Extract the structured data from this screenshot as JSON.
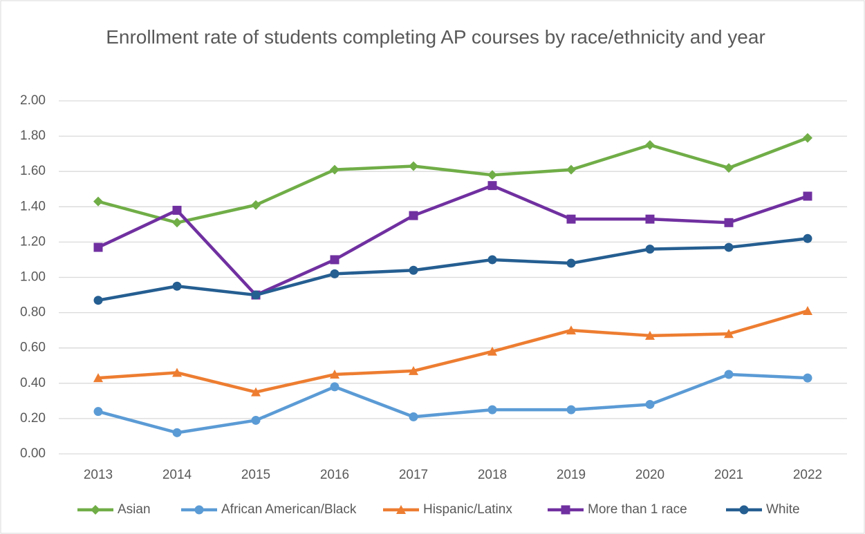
{
  "chart_data": {
    "type": "line",
    "title": "Enrollment rate of students completing AP courses by race/ethnicity and year",
    "categories": [
      "2013",
      "2014",
      "2015",
      "2016",
      "2017",
      "2018",
      "2019",
      "2020",
      "2021",
      "2022"
    ],
    "series": [
      {
        "name": "Asian",
        "color": "#70ad47",
        "marker": "diamond",
        "values": [
          1.43,
          1.31,
          1.41,
          1.61,
          1.63,
          1.58,
          1.61,
          1.75,
          1.62,
          1.79
        ]
      },
      {
        "name": "African American/Black",
        "color": "#5b9bd5",
        "marker": "circle",
        "values": [
          0.24,
          0.12,
          0.19,
          0.38,
          0.21,
          0.25,
          0.25,
          0.28,
          0.45,
          0.43
        ]
      },
      {
        "name": "Hispanic/Latinx",
        "color": "#ed7d31",
        "marker": "triangle",
        "values": [
          0.43,
          0.46,
          0.35,
          0.45,
          0.47,
          0.58,
          0.7,
          0.67,
          0.68,
          0.81
        ]
      },
      {
        "name": "More than 1 race",
        "color": "#7030a0",
        "marker": "square",
        "values": [
          1.17,
          1.38,
          0.9,
          1.1,
          1.35,
          1.52,
          1.33,
          1.33,
          1.31,
          1.46
        ]
      },
      {
        "name": "White",
        "color": "#255e91",
        "marker": "circle",
        "values": [
          0.87,
          0.95,
          0.9,
          1.02,
          1.04,
          1.1,
          1.08,
          1.16,
          1.17,
          1.22
        ]
      }
    ],
    "ylim": [
      0,
      2
    ],
    "yticks": [
      {
        "value": 0,
        "label": "0.00"
      },
      {
        "value": 0.2,
        "label": "0.20"
      },
      {
        "value": 0.4,
        "label": "0.40"
      },
      {
        "value": 0.6,
        "label": "0.60"
      },
      {
        "value": 0.8,
        "label": "0.80"
      },
      {
        "value": 1,
        "label": "1.00"
      },
      {
        "value": 1.2,
        "label": "1.20"
      },
      {
        "value": 1.4,
        "label": "1.40"
      },
      {
        "value": 1.6,
        "label": "1.60"
      },
      {
        "value": 1.8,
        "label": "1.80"
      },
      {
        "value": 2,
        "label": "2.00"
      }
    ],
    "grid": true,
    "legend": "bottom"
  }
}
